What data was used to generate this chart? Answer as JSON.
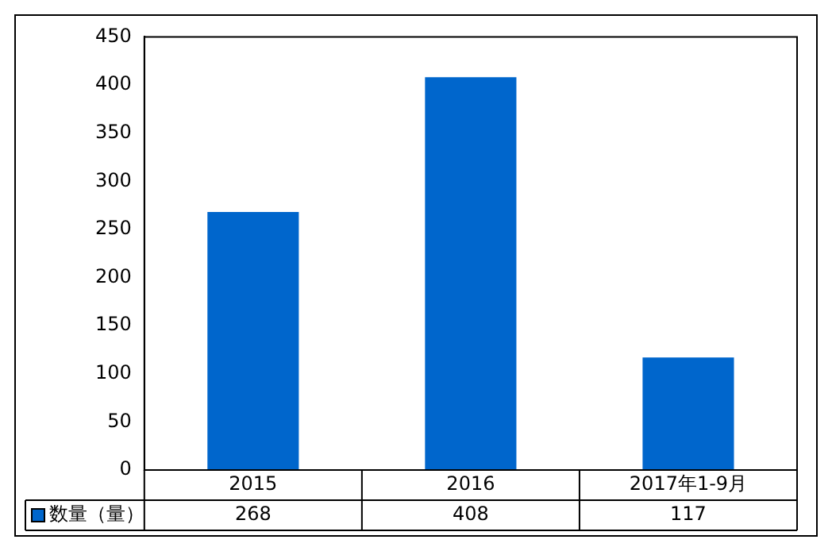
{
  "chart_data": {
    "type": "bar",
    "categories": [
      "2015",
      "2016",
      "2017年1-9月"
    ],
    "series": [
      {
        "name": "数量（量）",
        "color": "#0066cc",
        "values": [
          268,
          408,
          117
        ]
      }
    ],
    "ylim": [
      0,
      450
    ],
    "yticks": [
      0,
      50,
      100,
      150,
      200,
      250,
      300,
      350,
      400,
      450
    ],
    "data_labels": true,
    "legend": "bottom"
  }
}
